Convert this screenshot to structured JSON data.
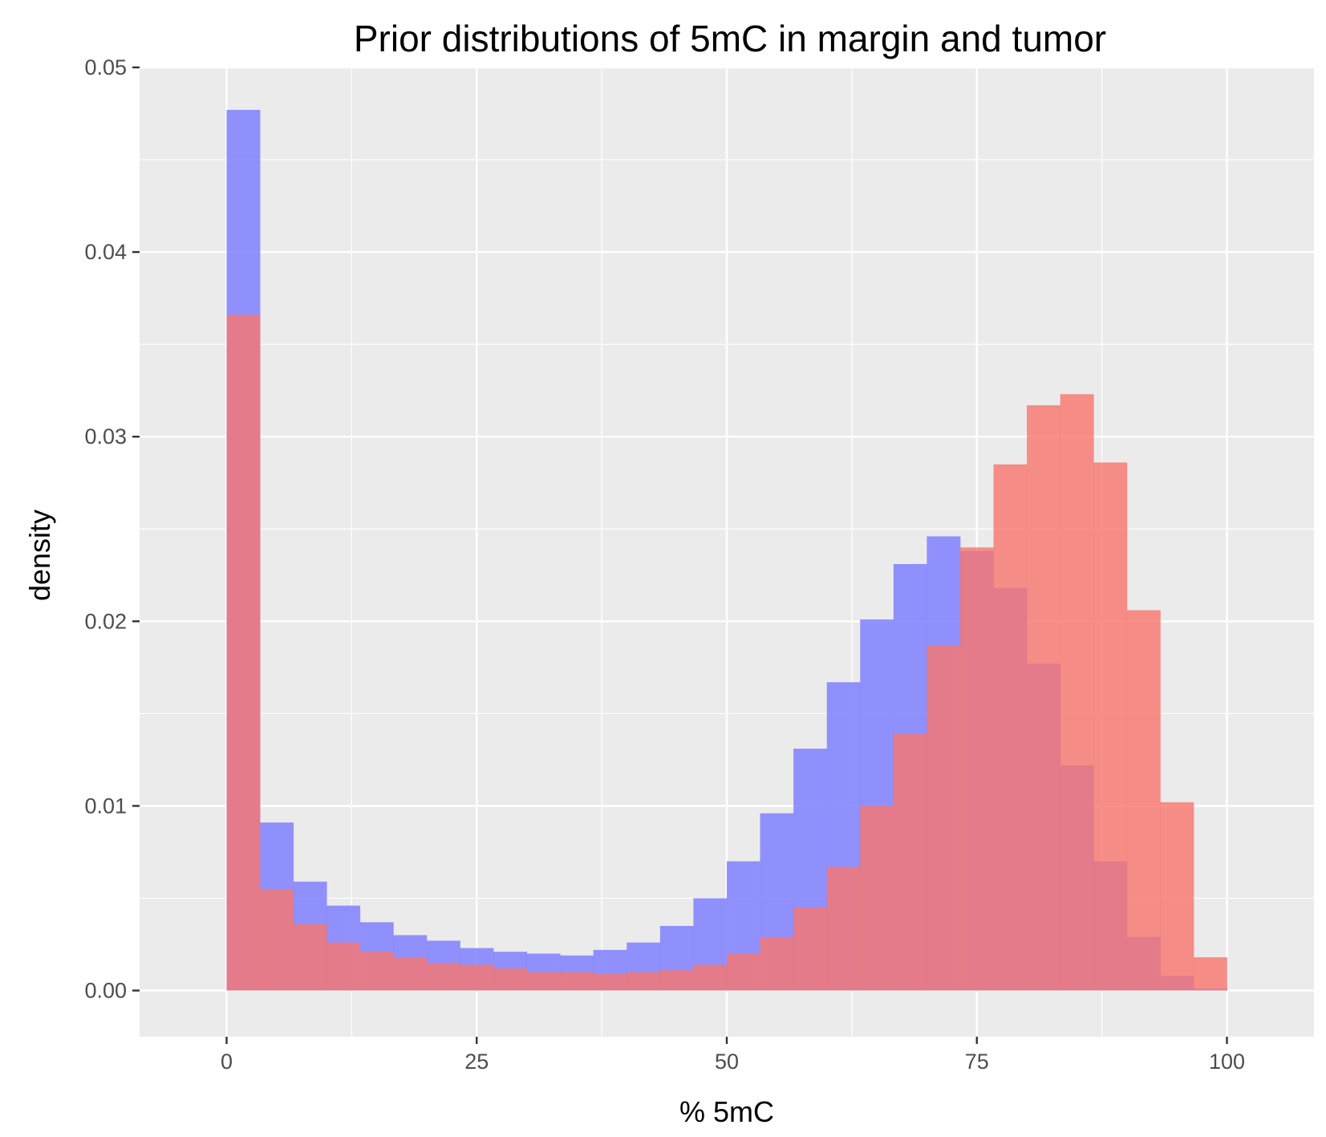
{
  "chart_data": {
    "type": "bar",
    "title": "Prior distributions of 5mC in margin and tumor",
    "xlabel": "% 5mC",
    "ylabel": "density",
    "xlim": [
      -8.7,
      108.7
    ],
    "ylim": [
      -0.0025,
      0.05
    ],
    "x_ticks": [
      0,
      25,
      50,
      75,
      100
    ],
    "x_tick_labels": [
      "0",
      "25",
      "50",
      "75",
      "100"
    ],
    "y_ticks": [
      0,
      0.01,
      0.02,
      0.03,
      0.04,
      0.05
    ],
    "y_tick_labels": [
      "0.00",
      "0.01",
      "0.02",
      "0.03",
      "0.04",
      "0.05"
    ],
    "grid": true,
    "legend": "none",
    "bin_edges": [
      0,
      3.333,
      6.667,
      10,
      13.333,
      16.667,
      20,
      23.333,
      26.667,
      30,
      33.333,
      36.667,
      40,
      43.333,
      46.667,
      50,
      53.333,
      56.667,
      60,
      63.333,
      66.667,
      70,
      73.333,
      76.667,
      80,
      83.333,
      86.667,
      90,
      93.333,
      96.667,
      100
    ],
    "series": [
      {
        "color": "#8080ff",
        "opacity": 0.85,
        "values": [
          0.0477,
          0.0091,
          0.0059,
          0.0046,
          0.0037,
          0.003,
          0.0027,
          0.0023,
          0.0021,
          0.002,
          0.0019,
          0.0022,
          0.0026,
          0.0035,
          0.005,
          0.007,
          0.0096,
          0.0131,
          0.0167,
          0.0201,
          0.0231,
          0.0246,
          0.0238,
          0.0218,
          0.0177,
          0.0122,
          0.007,
          0.0029,
          0.0008,
          0.0001
        ]
      },
      {
        "color": "#f8766d",
        "opacity": 0.8,
        "values": [
          0.0366,
          0.0055,
          0.0036,
          0.0026,
          0.0021,
          0.0018,
          0.0015,
          0.0014,
          0.0012,
          0.001,
          0.001,
          0.0009,
          0.001,
          0.0011,
          0.0014,
          0.002,
          0.0029,
          0.0045,
          0.0067,
          0.01,
          0.0139,
          0.0187,
          0.024,
          0.0285,
          0.0317,
          0.0323,
          0.0286,
          0.0206,
          0.0102,
          0.0018
        ]
      }
    ]
  }
}
